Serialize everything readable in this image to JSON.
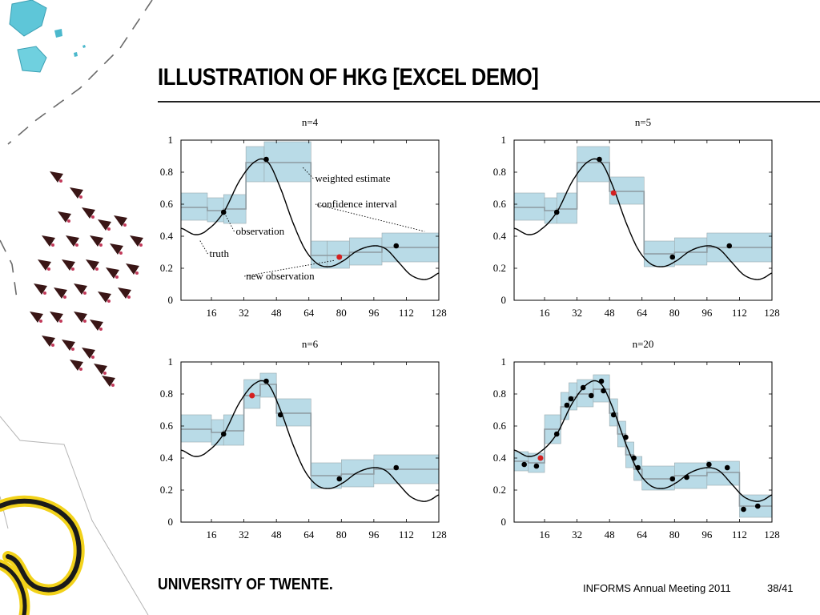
{
  "slide": {
    "title": "ILLUSTRATION OF HKG [EXCEL DEMO]",
    "logo_text": "UNIVERSITY OF TWENTE.",
    "conference": "INFORMS Annual Meeting 2011",
    "page": "38/41"
  },
  "colors": {
    "band": "#b9dbe7",
    "band_edge": "#9aa9ae",
    "estimate": "#8e9aa0",
    "truth": "#000000",
    "observation": "#000000",
    "new_observation": "#d42020",
    "deco_cyan": "#5ec6d8",
    "deco_yellow": "#f2d21a",
    "deco_dark": "#3a1616"
  },
  "chart_data": [
    {
      "type": "line",
      "title": "n=4",
      "xlim": [
        1,
        128
      ],
      "ylim": [
        0,
        1
      ],
      "xticks": [
        16,
        32,
        48,
        64,
        80,
        96,
        112,
        128
      ],
      "yticks": [
        0,
        0.2,
        0.4,
        0.6,
        0.8,
        1
      ],
      "ytick_labels": [
        "0",
        "0.2",
        "0.4",
        "0.6",
        "0.8",
        "1"
      ],
      "steps": [
        {
          "x0": 1,
          "x1": 14,
          "y": 0.58,
          "lo": 0.5,
          "hi": 0.67
        },
        {
          "x0": 14,
          "x1": 22,
          "y": 0.56,
          "lo": 0.49,
          "hi": 0.64
        },
        {
          "x0": 22,
          "x1": 33,
          "y": 0.57,
          "lo": 0.48,
          "hi": 0.66
        },
        {
          "x0": 33,
          "x1": 42,
          "y": 0.86,
          "lo": 0.74,
          "hi": 0.96
        },
        {
          "x0": 42,
          "x1": 65,
          "y": 0.86,
          "lo": 0.74,
          "hi": 0.99
        },
        {
          "x0": 65,
          "x1": 73,
          "y": 0.28,
          "lo": 0.2,
          "hi": 0.37
        },
        {
          "x0": 73,
          "x1": 84,
          "y": 0.28,
          "lo": 0.2,
          "hi": 0.37
        },
        {
          "x0": 84,
          "x1": 100,
          "y": 0.3,
          "lo": 0.22,
          "hi": 0.39
        },
        {
          "x0": 100,
          "x1": 128,
          "y": 0.33,
          "lo": 0.24,
          "hi": 0.42
        }
      ],
      "observations": [
        {
          "x": 22,
          "y": 0.55
        },
        {
          "x": 43,
          "y": 0.88
        },
        {
          "x": 107,
          "y": 0.34
        }
      ],
      "new_observation": {
        "x": 79,
        "y": 0.27
      },
      "annotations": [
        {
          "text": "weighted estimate",
          "x": 67,
          "y": 0.74,
          "ax": 61,
          "ay": 0.83
        },
        {
          "text": "confidence interval",
          "x": 68,
          "y": 0.58,
          "ax": 121,
          "ay": 0.43
        },
        {
          "text": "observation",
          "x": 28,
          "y": 0.41,
          "ax": 23,
          "ay": 0.53
        },
        {
          "text": "truth",
          "x": 15,
          "y": 0.27,
          "ax": 10,
          "ay": 0.38
        },
        {
          "text": "new observation",
          "x": 33,
          "y": 0.13,
          "ax": 77,
          "ay": 0.25
        }
      ]
    },
    {
      "type": "line",
      "title": "n=5",
      "xlim": [
        1,
        128
      ],
      "ylim": [
        0,
        1
      ],
      "xticks": [
        16,
        32,
        48,
        64,
        80,
        96,
        112,
        128
      ],
      "yticks": [
        0,
        0.2,
        0.4,
        0.6,
        0.8,
        1
      ],
      "ytick_labels": [
        "0",
        "0.2",
        "0.4",
        "0.6",
        "0.8",
        "1"
      ],
      "steps": [
        {
          "x0": 1,
          "x1": 16,
          "y": 0.58,
          "lo": 0.5,
          "hi": 0.67
        },
        {
          "x0": 16,
          "x1": 22,
          "y": 0.56,
          "lo": 0.48,
          "hi": 0.64
        },
        {
          "x0": 22,
          "x1": 32,
          "y": 0.57,
          "lo": 0.48,
          "hi": 0.67
        },
        {
          "x0": 32,
          "x1": 48,
          "y": 0.86,
          "lo": 0.74,
          "hi": 0.96
        },
        {
          "x0": 48,
          "x1": 65,
          "y": 0.68,
          "lo": 0.6,
          "hi": 0.77
        },
        {
          "x0": 65,
          "x1": 80,
          "y": 0.29,
          "lo": 0.21,
          "hi": 0.37
        },
        {
          "x0": 80,
          "x1": 96,
          "y": 0.3,
          "lo": 0.22,
          "hi": 0.39
        },
        {
          "x0": 96,
          "x1": 128,
          "y": 0.33,
          "lo": 0.24,
          "hi": 0.42
        }
      ],
      "observations": [
        {
          "x": 22,
          "y": 0.55
        },
        {
          "x": 43,
          "y": 0.88
        },
        {
          "x": 79,
          "y": 0.27
        },
        {
          "x": 107,
          "y": 0.34
        }
      ],
      "new_observation": {
        "x": 50,
        "y": 0.67
      },
      "annotations": []
    },
    {
      "type": "line",
      "title": "n=6",
      "xlim": [
        1,
        128
      ],
      "ylim": [
        0,
        1
      ],
      "xticks": [
        16,
        32,
        48,
        64,
        80,
        96,
        112,
        128
      ],
      "yticks": [
        0,
        0.2,
        0.4,
        0.6,
        0.8,
        1
      ],
      "ytick_labels": [
        "0",
        "0.2",
        "0.4",
        "0.6",
        "0.8",
        "1"
      ],
      "steps": [
        {
          "x0": 1,
          "x1": 16,
          "y": 0.58,
          "lo": 0.5,
          "hi": 0.67
        },
        {
          "x0": 16,
          "x1": 22,
          "y": 0.56,
          "lo": 0.48,
          "hi": 0.64
        },
        {
          "x0": 22,
          "x1": 32,
          "y": 0.57,
          "lo": 0.48,
          "hi": 0.67
        },
        {
          "x0": 32,
          "x1": 40,
          "y": 0.79,
          "lo": 0.71,
          "hi": 0.89
        },
        {
          "x0": 40,
          "x1": 48,
          "y": 0.86,
          "lo": 0.78,
          "hi": 0.93
        },
        {
          "x0": 48,
          "x1": 65,
          "y": 0.68,
          "lo": 0.6,
          "hi": 0.77
        },
        {
          "x0": 65,
          "x1": 80,
          "y": 0.29,
          "lo": 0.21,
          "hi": 0.37
        },
        {
          "x0": 80,
          "x1": 96,
          "y": 0.3,
          "lo": 0.22,
          "hi": 0.39
        },
        {
          "x0": 96,
          "x1": 128,
          "y": 0.33,
          "lo": 0.24,
          "hi": 0.42
        }
      ],
      "observations": [
        {
          "x": 22,
          "y": 0.55
        },
        {
          "x": 43,
          "y": 0.88
        },
        {
          "x": 50,
          "y": 0.67
        },
        {
          "x": 79,
          "y": 0.27
        },
        {
          "x": 107,
          "y": 0.34
        }
      ],
      "new_observation": {
        "x": 36,
        "y": 0.79
      },
      "annotations": []
    },
    {
      "type": "line",
      "title": "n=20",
      "xlim": [
        1,
        128
      ],
      "ylim": [
        0,
        1
      ],
      "xticks": [
        16,
        32,
        48,
        64,
        80,
        96,
        112,
        128
      ],
      "yticks": [
        0,
        0.2,
        0.4,
        0.6,
        0.8,
        1
      ],
      "ytick_labels": [
        "0",
        "0.2",
        "0.4",
        "0.6",
        "0.8",
        "1"
      ],
      "steps": [
        {
          "x0": 1,
          "x1": 8,
          "y": 0.38,
          "lo": 0.32,
          "hi": 0.44
        },
        {
          "x0": 8,
          "x1": 16,
          "y": 0.37,
          "lo": 0.31,
          "hi": 0.43
        },
        {
          "x0": 16,
          "x1": 24,
          "y": 0.58,
          "lo": 0.49,
          "hi": 0.67
        },
        {
          "x0": 24,
          "x1": 28,
          "y": 0.72,
          "lo": 0.64,
          "hi": 0.81
        },
        {
          "x0": 28,
          "x1": 32,
          "y": 0.78,
          "lo": 0.7,
          "hi": 0.87
        },
        {
          "x0": 32,
          "x1": 40,
          "y": 0.8,
          "lo": 0.72,
          "hi": 0.89
        },
        {
          "x0": 40,
          "x1": 48,
          "y": 0.83,
          "lo": 0.75,
          "hi": 0.92
        },
        {
          "x0": 48,
          "x1": 52,
          "y": 0.68,
          "lo": 0.6,
          "hi": 0.77
        },
        {
          "x0": 52,
          "x1": 56,
          "y": 0.55,
          "lo": 0.47,
          "hi": 0.63
        },
        {
          "x0": 56,
          "x1": 60,
          "y": 0.42,
          "lo": 0.34,
          "hi": 0.5
        },
        {
          "x0": 60,
          "x1": 64,
          "y": 0.33,
          "lo": 0.26,
          "hi": 0.41
        },
        {
          "x0": 64,
          "x1": 80,
          "y": 0.27,
          "lo": 0.2,
          "hi": 0.35
        },
        {
          "x0": 80,
          "x1": 96,
          "y": 0.29,
          "lo": 0.21,
          "hi": 0.37
        },
        {
          "x0": 96,
          "x1": 112,
          "y": 0.31,
          "lo": 0.23,
          "hi": 0.38
        },
        {
          "x0": 112,
          "x1": 128,
          "y": 0.1,
          "lo": 0.03,
          "hi": 0.17
        }
      ],
      "observations": [
        {
          "x": 6,
          "y": 0.36
        },
        {
          "x": 12,
          "y": 0.35
        },
        {
          "x": 22,
          "y": 0.55
        },
        {
          "x": 27,
          "y": 0.73
        },
        {
          "x": 29,
          "y": 0.77
        },
        {
          "x": 35,
          "y": 0.84
        },
        {
          "x": 39,
          "y": 0.79
        },
        {
          "x": 44,
          "y": 0.88
        },
        {
          "x": 45,
          "y": 0.82
        },
        {
          "x": 50,
          "y": 0.67
        },
        {
          "x": 56,
          "y": 0.53
        },
        {
          "x": 60,
          "y": 0.4
        },
        {
          "x": 62,
          "y": 0.34
        },
        {
          "x": 79,
          "y": 0.27
        },
        {
          "x": 86,
          "y": 0.28
        },
        {
          "x": 97,
          "y": 0.36
        },
        {
          "x": 106,
          "y": 0.34
        },
        {
          "x": 114,
          "y": 0.08
        },
        {
          "x": 121,
          "y": 0.1
        }
      ],
      "new_observation": {
        "x": 14,
        "y": 0.4
      },
      "annotations": []
    }
  ]
}
